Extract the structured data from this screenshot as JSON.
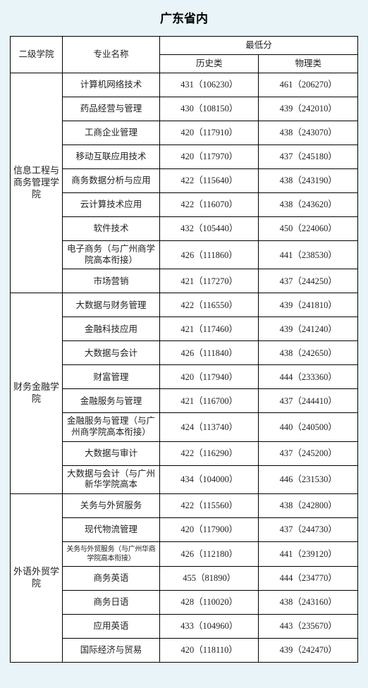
{
  "title": "广东省内",
  "headers": {
    "dept": "二级学院",
    "major": "专业名称",
    "score_group": "最低分",
    "history": "历史类",
    "physics": "物理类"
  },
  "background_color": "#e8f4f8",
  "border_color": "#000000",
  "text_color": "#222222",
  "depts": [
    {
      "name": "信息工程与商务管理学院",
      "rowspan": 9,
      "majors": [
        {
          "name": "计算机网络技术",
          "history": "431（106230）",
          "physics": "461（206270）"
        },
        {
          "name": "药品经营与管理",
          "history": "430（108150）",
          "physics": "439（242010）"
        },
        {
          "name": "工商企业管理",
          "history": "420（117910）",
          "physics": "438（243070）"
        },
        {
          "name": "移动互联应用技术",
          "history": "420（117970）",
          "physics": "437（245180）"
        },
        {
          "name": "商务数据分析与应用",
          "history": "422（115640）",
          "physics": "438（243190）",
          "multiline": true
        },
        {
          "name": "云计算技术应用",
          "history": "422（116070）",
          "physics": "438（243620）"
        },
        {
          "name": "软件技术",
          "history": "432（105440）",
          "physics": "450（224060）"
        },
        {
          "name": "电子商务（与广州商学院高本衔接）",
          "history": "426（111860）",
          "physics": "441（238530）",
          "multiline": true
        },
        {
          "name": "市场营销",
          "history": "421（117270）",
          "physics": "437（244250）"
        }
      ]
    },
    {
      "name": "财务金融学院",
      "rowspan": 8,
      "majors": [
        {
          "name": "大数据与财务管理",
          "history": "422（116550）",
          "physics": "439（241810）"
        },
        {
          "name": "金融科技应用",
          "history": "421（117460）",
          "physics": "439（241240）"
        },
        {
          "name": "大数据与会计",
          "history": "426（111840）",
          "physics": "438（242650）"
        },
        {
          "name": "财富管理",
          "history": "420（117940）",
          "physics": "444（233360）"
        },
        {
          "name": "金融服务与管理",
          "history": "421（116700）",
          "physics": "437（244410）"
        },
        {
          "name": "金融服务与管理（与广州商学院高本衔接）",
          "history": "424（113740）",
          "physics": "440（240500）",
          "multiline": true
        },
        {
          "name": "大数据与审计",
          "history": "422（116290）",
          "physics": "437（245200）"
        },
        {
          "name": "大数据与会计（与广州新华学院高本",
          "history": "434（104000）",
          "physics": "446（231530）",
          "multiline": true
        }
      ]
    },
    {
      "name": "外语外贸学院",
      "rowspan": 7,
      "majors": [
        {
          "name": "关务与外贸服务",
          "history": "422（115560）",
          "physics": "438（242800）"
        },
        {
          "name": "现代物流管理",
          "history": "420（117900）",
          "physics": "437（244730）"
        },
        {
          "name": "关务与外贸服务（与广州华商学院高本衔接）",
          "history": "426（112180）",
          "physics": "441（239120）",
          "small": true
        },
        {
          "name": "商务英语",
          "history": "455（81890）",
          "physics": "444（234770）"
        },
        {
          "name": "商务日语",
          "history": "428（110020）",
          "physics": "438（243160）"
        },
        {
          "name": "应用英语",
          "history": "433（104960）",
          "physics": "443（235670）"
        },
        {
          "name": "国际经济与贸易",
          "history": "420（118110）",
          "physics": "439（242470）"
        }
      ]
    }
  ]
}
